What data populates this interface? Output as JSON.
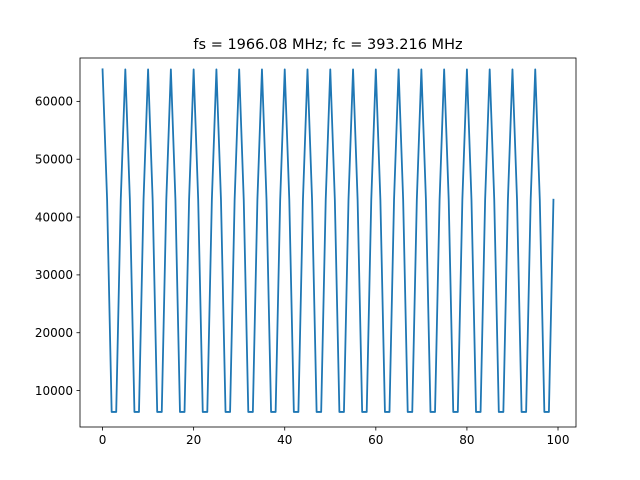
{
  "chart_data": {
    "type": "line",
    "title": "fs = 1966.08 MHz; fc = 393.216 MHz",
    "xlabel": "",
    "ylabel": "",
    "xlim": [
      -4.95,
      103.95
    ],
    "ylim": [
      3700,
      67500
    ],
    "xticks": [
      0,
      20,
      40,
      60,
      80,
      100
    ],
    "xtick_labels": [
      "0",
      "20",
      "40",
      "60",
      "80",
      "100"
    ],
    "yticks": [
      10000,
      20000,
      30000,
      40000,
      50000,
      60000
    ],
    "ytick_labels": [
      "10000",
      "20000",
      "30000",
      "40000",
      "50000",
      "60000"
    ],
    "grid": false,
    "series": [
      {
        "color": "#1f77b4",
        "x": [
          0,
          1,
          2,
          3,
          4,
          5,
          6,
          7,
          8,
          9,
          10,
          11,
          12,
          13,
          14,
          15,
          16,
          17,
          18,
          19,
          20,
          21,
          22,
          23,
          24,
          25,
          26,
          27,
          28,
          29,
          30,
          31,
          32,
          33,
          34,
          35,
          36,
          37,
          38,
          39,
          40,
          41,
          42,
          43,
          44,
          45,
          46,
          47,
          48,
          49,
          50,
          51,
          52,
          53,
          54,
          55,
          56,
          57,
          58,
          59,
          60,
          61,
          62,
          63,
          64,
          65,
          66,
          67,
          68,
          69,
          70,
          71,
          72,
          73,
          74,
          75,
          76,
          77,
          78,
          79,
          80,
          81,
          82,
          83,
          84,
          85,
          86,
          87,
          88,
          89,
          90,
          91,
          92,
          93,
          94,
          95,
          96,
          97,
          98,
          99
        ],
        "y": [
          65535,
          43000,
          6300,
          6300,
          43000,
          65535,
          43000,
          6300,
          6300,
          43000,
          65535,
          43000,
          6300,
          6300,
          43000,
          65535,
          43000,
          6300,
          6300,
          43000,
          65535,
          43000,
          6300,
          6300,
          43000,
          65535,
          43000,
          6300,
          6300,
          43000,
          65535,
          43000,
          6300,
          6300,
          43000,
          65535,
          43000,
          6300,
          6300,
          43000,
          65535,
          43000,
          6300,
          6300,
          43000,
          65535,
          43000,
          6300,
          6300,
          43000,
          65535,
          43000,
          6300,
          6300,
          43000,
          65535,
          43000,
          6300,
          6300,
          43000,
          65535,
          43000,
          6300,
          6300,
          43000,
          65535,
          43000,
          6300,
          6300,
          43000,
          65535,
          43000,
          6300,
          6300,
          43000,
          65535,
          43000,
          6300,
          6300,
          43000,
          65535,
          43000,
          6300,
          6300,
          43000,
          65535,
          43000,
          6300,
          6300,
          43000,
          65535,
          43000,
          6300,
          6300,
          43000,
          65535,
          43000,
          6300,
          6300,
          43000
        ]
      }
    ]
  }
}
